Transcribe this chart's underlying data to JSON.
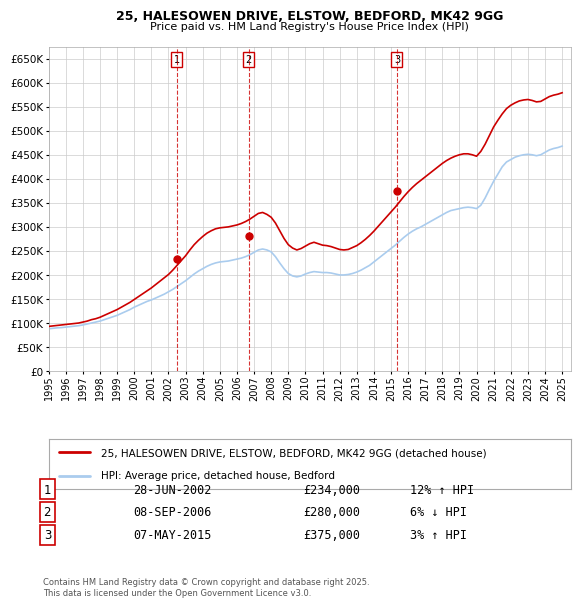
{
  "title": "25, HALESOWEN DRIVE, ELSTOW, BEDFORD, MK42 9GG",
  "subtitle": "Price paid vs. HM Land Registry's House Price Index (HPI)",
  "legend_property": "25, HALESOWEN DRIVE, ELSTOW, BEDFORD, MK42 9GG (detached house)",
  "legend_hpi": "HPI: Average price, detached house, Bedford",
  "footer": "Contains HM Land Registry data © Crown copyright and database right 2025.\nThis data is licensed under the Open Government Licence v3.0.",
  "transactions": [
    {
      "num": 1,
      "date": "28-JUN-2002",
      "date_val": 2002.49,
      "price": 234000,
      "hpi_pct": "12% ↑ HPI"
    },
    {
      "num": 2,
      "date": "08-SEP-2006",
      "date_val": 2006.69,
      "price": 280000,
      "hpi_pct": "6% ↓ HPI"
    },
    {
      "num": 3,
      "date": "07-MAY-2015",
      "date_val": 2015.35,
      "price": 375000,
      "hpi_pct": "3% ↑ HPI"
    }
  ],
  "xlim": [
    1995.0,
    2025.5
  ],
  "ylim": [
    0,
    675000
  ],
  "yticks": [
    0,
    50000,
    100000,
    150000,
    200000,
    250000,
    300000,
    350000,
    400000,
    450000,
    500000,
    550000,
    600000,
    650000
  ],
  "ytick_labels": [
    "£0",
    "£50K",
    "£100K",
    "£150K",
    "£200K",
    "£250K",
    "£300K",
    "£350K",
    "£400K",
    "£450K",
    "£500K",
    "£550K",
    "£600K",
    "£650K"
  ],
  "xticks": [
    1995,
    1996,
    1997,
    1998,
    1999,
    2000,
    2001,
    2002,
    2003,
    2004,
    2005,
    2006,
    2007,
    2008,
    2009,
    2010,
    2011,
    2012,
    2013,
    2014,
    2015,
    2016,
    2017,
    2018,
    2019,
    2020,
    2021,
    2022,
    2023,
    2024,
    2025
  ],
  "property_color": "#cc0000",
  "hpi_color": "#aaccee",
  "marker_color": "#cc0000",
  "background_color": "#ffffff",
  "grid_color": "#cccccc",
  "hpi_data_x": [
    1995.0,
    1995.25,
    1995.5,
    1995.75,
    1996.0,
    1996.25,
    1996.5,
    1996.75,
    1997.0,
    1997.25,
    1997.5,
    1997.75,
    1998.0,
    1998.25,
    1998.5,
    1998.75,
    1999.0,
    1999.25,
    1999.5,
    1999.75,
    2000.0,
    2000.25,
    2000.5,
    2000.75,
    2001.0,
    2001.25,
    2001.5,
    2001.75,
    2002.0,
    2002.25,
    2002.5,
    2002.75,
    2003.0,
    2003.25,
    2003.5,
    2003.75,
    2004.0,
    2004.25,
    2004.5,
    2004.75,
    2005.0,
    2005.25,
    2005.5,
    2005.75,
    2006.0,
    2006.25,
    2006.5,
    2006.75,
    2007.0,
    2007.25,
    2007.5,
    2007.75,
    2008.0,
    2008.25,
    2008.5,
    2008.75,
    2009.0,
    2009.25,
    2009.5,
    2009.75,
    2010.0,
    2010.25,
    2010.5,
    2010.75,
    2011.0,
    2011.25,
    2011.5,
    2011.75,
    2012.0,
    2012.25,
    2012.5,
    2012.75,
    2013.0,
    2013.25,
    2013.5,
    2013.75,
    2014.0,
    2014.25,
    2014.5,
    2014.75,
    2015.0,
    2015.25,
    2015.5,
    2015.75,
    2016.0,
    2016.25,
    2016.5,
    2016.75,
    2017.0,
    2017.25,
    2017.5,
    2017.75,
    2018.0,
    2018.25,
    2018.5,
    2018.75,
    2019.0,
    2019.25,
    2019.5,
    2019.75,
    2020.0,
    2020.25,
    2020.5,
    2020.75,
    2021.0,
    2021.25,
    2021.5,
    2021.75,
    2022.0,
    2022.25,
    2022.5,
    2022.75,
    2023.0,
    2023.25,
    2023.5,
    2023.75,
    2024.0,
    2024.25,
    2024.5,
    2024.75,
    2025.0
  ],
  "hpi_data_y": [
    88000,
    89000,
    90000,
    90500,
    91500,
    92500,
    93500,
    94500,
    96000,
    98000,
    100000,
    102000,
    104000,
    107000,
    110000,
    113000,
    116000,
    120000,
    124000,
    128000,
    133000,
    137000,
    141000,
    145000,
    148000,
    152000,
    156000,
    160000,
    165000,
    170000,
    176000,
    182000,
    188000,
    195000,
    202000,
    208000,
    213000,
    218000,
    222000,
    225000,
    227000,
    228000,
    229000,
    231000,
    233000,
    235000,
    238000,
    242000,
    247000,
    252000,
    254000,
    252000,
    248000,
    238000,
    225000,
    213000,
    203000,
    198000,
    196000,
    198000,
    202000,
    205000,
    207000,
    206000,
    205000,
    205000,
    204000,
    202000,
    200000,
    200000,
    201000,
    203000,
    206000,
    210000,
    215000,
    220000,
    227000,
    234000,
    241000,
    248000,
    255000,
    262000,
    270000,
    278000,
    285000,
    291000,
    296000,
    300000,
    305000,
    310000,
    315000,
    320000,
    325000,
    330000,
    334000,
    336000,
    338000,
    340000,
    341000,
    340000,
    338000,
    345000,
    360000,
    378000,
    395000,
    410000,
    425000,
    435000,
    440000,
    445000,
    448000,
    450000,
    451000,
    450000,
    448000,
    450000,
    455000,
    460000,
    463000,
    465000,
    468000
  ],
  "property_data_x": [
    1995.0,
    1995.25,
    1995.5,
    1995.75,
    1996.0,
    1996.25,
    1996.5,
    1996.75,
    1997.0,
    1997.25,
    1997.5,
    1997.75,
    1998.0,
    1998.25,
    1998.5,
    1998.75,
    1999.0,
    1999.25,
    1999.5,
    1999.75,
    2000.0,
    2000.25,
    2000.5,
    2000.75,
    2001.0,
    2001.25,
    2001.5,
    2001.75,
    2002.0,
    2002.25,
    2002.5,
    2002.75,
    2003.0,
    2003.25,
    2003.5,
    2003.75,
    2004.0,
    2004.25,
    2004.5,
    2004.75,
    2005.0,
    2005.25,
    2005.5,
    2005.75,
    2006.0,
    2006.25,
    2006.5,
    2006.75,
    2007.0,
    2007.25,
    2007.5,
    2007.75,
    2008.0,
    2008.25,
    2008.5,
    2008.75,
    2009.0,
    2009.25,
    2009.5,
    2009.75,
    2010.0,
    2010.25,
    2010.5,
    2010.75,
    2011.0,
    2011.25,
    2011.5,
    2011.75,
    2012.0,
    2012.25,
    2012.5,
    2012.75,
    2013.0,
    2013.25,
    2013.5,
    2013.75,
    2014.0,
    2014.25,
    2014.5,
    2014.75,
    2015.0,
    2015.25,
    2015.5,
    2015.75,
    2016.0,
    2016.25,
    2016.5,
    2016.75,
    2017.0,
    2017.25,
    2017.5,
    2017.75,
    2018.0,
    2018.25,
    2018.5,
    2018.75,
    2019.0,
    2019.25,
    2019.5,
    2019.75,
    2020.0,
    2020.25,
    2020.5,
    2020.75,
    2021.0,
    2021.25,
    2021.5,
    2021.75,
    2022.0,
    2022.25,
    2022.5,
    2022.75,
    2023.0,
    2023.25,
    2023.5,
    2023.75,
    2024.0,
    2024.25,
    2024.5,
    2024.75,
    2025.0
  ],
  "property_data_y": [
    93000,
    94000,
    95000,
    96000,
    97000,
    98000,
    99000,
    100000,
    102000,
    104000,
    107000,
    109000,
    112000,
    116000,
    120000,
    124000,
    128000,
    133000,
    138000,
    143000,
    149000,
    155000,
    161000,
    167000,
    173000,
    180000,
    187000,
    194000,
    201000,
    210000,
    220000,
    230000,
    240000,
    252000,
    263000,
    272000,
    280000,
    287000,
    292000,
    296000,
    298000,
    299000,
    300000,
    302000,
    304000,
    307000,
    311000,
    316000,
    322000,
    328000,
    330000,
    326000,
    320000,
    308000,
    292000,
    276000,
    263000,
    256000,
    252000,
    255000,
    260000,
    265000,
    268000,
    265000,
    262000,
    261000,
    259000,
    256000,
    253000,
    252000,
    253000,
    257000,
    261000,
    267000,
    274000,
    282000,
    291000,
    301000,
    311000,
    321000,
    331000,
    341000,
    352000,
    363000,
    373000,
    382000,
    390000,
    397000,
    404000,
    411000,
    418000,
    425000,
    432000,
    438000,
    443000,
    447000,
    450000,
    452000,
    452000,
    450000,
    447000,
    457000,
    472000,
    490000,
    508000,
    522000,
    535000,
    546000,
    553000,
    558000,
    562000,
    564000,
    565000,
    563000,
    560000,
    561000,
    566000,
    571000,
    574000,
    576000,
    579000
  ]
}
